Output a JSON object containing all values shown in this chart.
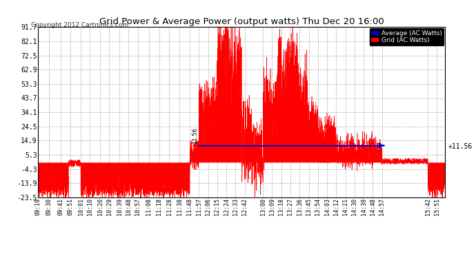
{
  "title": "Grid Power & Average Power (output watts) Thu Dec 20 16:00",
  "copyright": "Copyright 2012 Cartronics.com",
  "yticks": [
    91.7,
    82.1,
    72.5,
    62.9,
    53.3,
    43.7,
    34.1,
    24.5,
    14.9,
    5.3,
    -4.3,
    -13.9,
    -23.5
  ],
  "average_value": 11.56,
  "average_color": "#0000cc",
  "grid_color": "#ff0000",
  "bg_color": "#ffffff",
  "legend_avg_text": "Average (AC Watts)",
  "legend_grid_text": "Grid (AC Watts)",
  "legend_avg_color": "#0000cc",
  "legend_grid_color": "#ff0000",
  "ymin": -23.5,
  "ymax": 91.7,
  "xtick_labels": [
    "09:19",
    "09:30",
    "09:41",
    "09:51",
    "10:01",
    "10:10",
    "10:20",
    "10:29",
    "10:39",
    "10:48",
    "10:57",
    "11:08",
    "11:18",
    "11:28",
    "11:38",
    "11:48",
    "11:57",
    "12:06",
    "12:15",
    "12:24",
    "12:33",
    "12:42",
    "13:00",
    "13:09",
    "13:18",
    "13:27",
    "13:36",
    "13:45",
    "13:54",
    "14:03",
    "14:12",
    "14:21",
    "14:30",
    "14:39",
    "14:48",
    "14:57",
    "15:42",
    "15:51"
  ]
}
